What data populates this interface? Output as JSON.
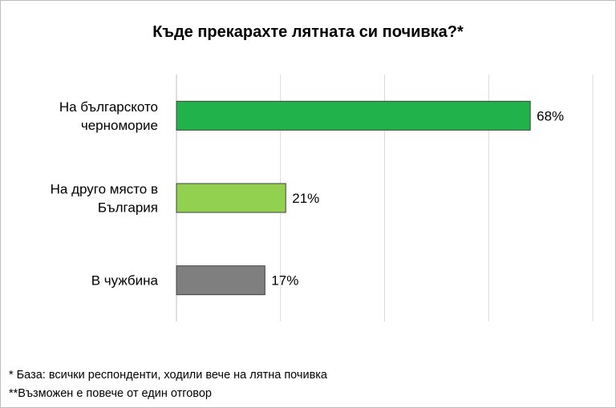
{
  "chart_data": {
    "type": "bar",
    "orientation": "horizontal",
    "title": "Къде прекарахте лятната си почивка?*",
    "categories": [
      [
        "На българското",
        "черноморие"
      ],
      [
        "На друго място в",
        "България"
      ],
      [
        "В чужбина"
      ]
    ],
    "values": [
      68,
      21,
      17
    ],
    "value_labels": [
      "68%",
      "21%",
      "17%"
    ],
    "colors": [
      "#21b24b",
      "#92d050",
      "#7f7f7f"
    ],
    "xlim": [
      0,
      80
    ],
    "grid": true
  },
  "footnotes": [
    "* База: всички респонденти, ходили вече на лятна почивка",
    "**Възможен е повече от един отговор"
  ]
}
